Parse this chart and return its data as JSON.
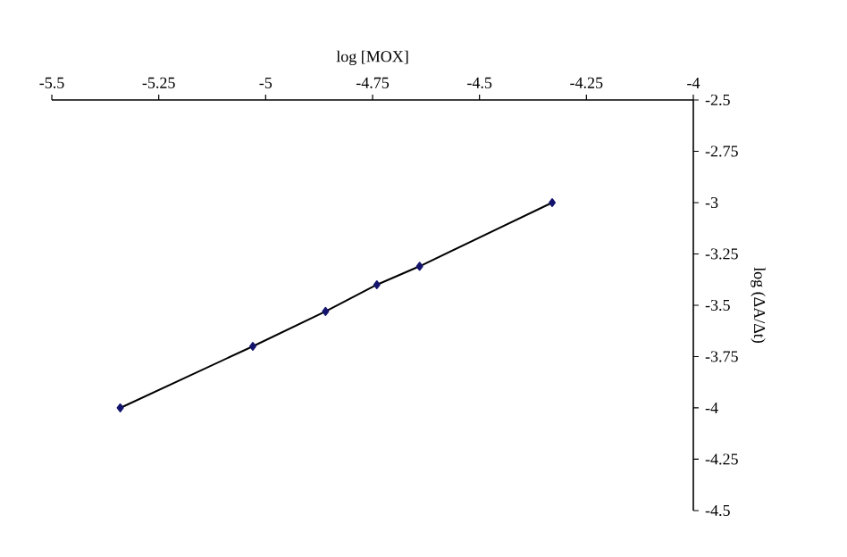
{
  "chart_data": {
    "type": "line",
    "xlabel": "log [MOX]",
    "ylabel": "log (ΔA/Δt)",
    "x": [
      -5.34,
      -5.03,
      -4.86,
      -4.74,
      -4.64,
      -4.33
    ],
    "series": [
      {
        "color": "#14146e",
        "values": [
          -4.0,
          -3.7,
          -3.53,
          -3.4,
          -3.31,
          -3.0
        ]
      }
    ],
    "xlim": [
      -5.5,
      -4
    ],
    "xticks": [
      -5.5,
      -5.25,
      -5,
      -4.75,
      -4.5,
      -4.25,
      -4
    ],
    "ylim": [
      -4.5,
      -2.5
    ],
    "yticks": [
      -4.5,
      -4.25,
      -4,
      -3.75,
      -3.5,
      -3.25,
      -3,
      -2.75,
      -2.5
    ],
    "marker": "diamond",
    "line_style": "solid",
    "grid": false
  }
}
